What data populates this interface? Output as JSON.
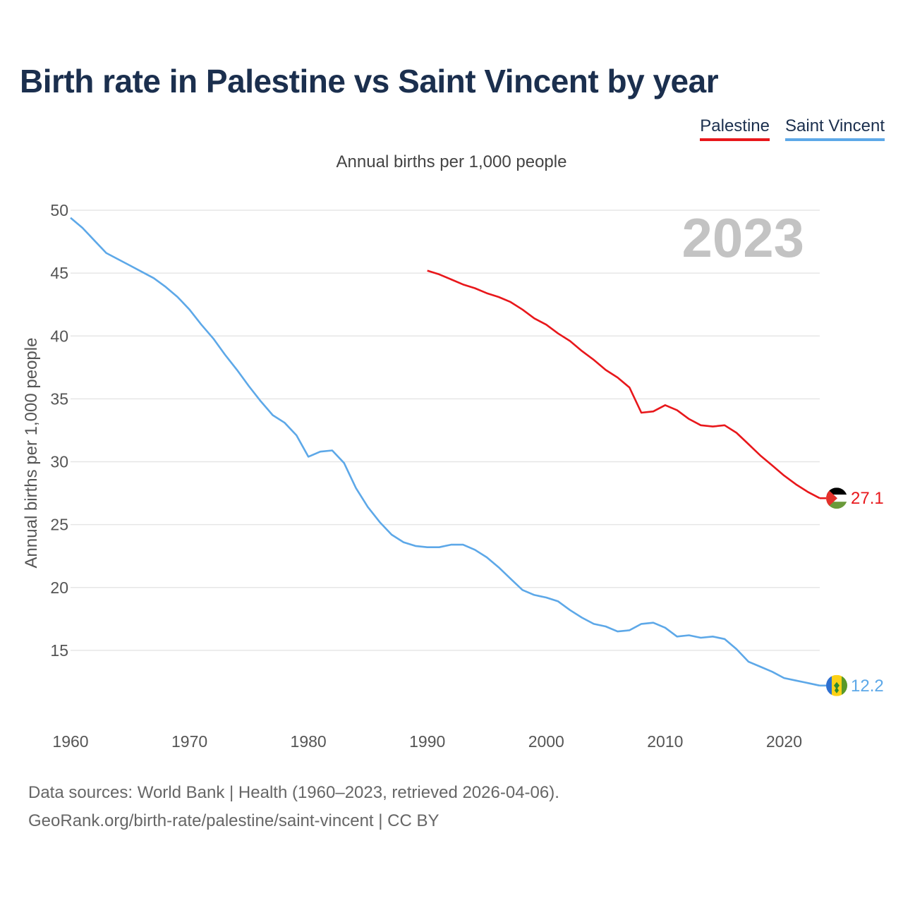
{
  "chart_data": {
    "type": "line",
    "title": "Birth rate in Palestine vs Saint Vincent by year",
    "subtitle": "Annual births per 1,000 people",
    "ylabel": "Annual births per 1,000 people",
    "xlabel": "",
    "current_year": "2023",
    "xlim": [
      1960,
      2023
    ],
    "ylim": [
      10,
      50
    ],
    "x_ticks": [
      1960,
      1970,
      1980,
      1990,
      2000,
      2010,
      2020
    ],
    "y_ticks": [
      15,
      20,
      25,
      30,
      35,
      40,
      45,
      50
    ],
    "legend_position": "top-right",
    "grid": true,
    "series": [
      {
        "name": "Palestine",
        "color": "#e8171b",
        "end_label": "27.1",
        "flag": "palestine-flag",
        "start_year": 1990,
        "values": [
          45.2,
          44.9,
          44.5,
          44.1,
          43.8,
          43.4,
          43.1,
          42.7,
          42.1,
          41.4,
          40.9,
          40.2,
          39.6,
          38.8,
          38.1,
          37.3,
          36.7,
          35.9,
          33.9,
          34.0,
          34.5,
          34.1,
          33.4,
          32.9,
          32.8,
          32.9,
          32.3,
          31.4,
          30.5,
          29.7,
          28.9,
          28.2,
          27.6,
          27.1
        ]
      },
      {
        "name": "Saint Vincent",
        "color": "#5da8e8",
        "end_label": "12.2",
        "flag": "saint-vincent-flag",
        "start_year": 1960,
        "values": [
          49.4,
          48.6,
          47.6,
          46.6,
          46.1,
          45.6,
          45.1,
          44.6,
          43.9,
          43.1,
          42.1,
          40.9,
          39.8,
          38.5,
          37.3,
          36.0,
          34.8,
          33.7,
          33.1,
          32.1,
          30.4,
          30.8,
          30.9,
          29.9,
          27.9,
          26.4,
          25.2,
          24.2,
          23.6,
          23.3,
          23.2,
          23.2,
          23.4,
          23.4,
          23.0,
          22.4,
          21.6,
          20.7,
          19.8,
          19.4,
          19.2,
          18.9,
          18.2,
          17.6,
          17.1,
          16.9,
          16.5,
          16.6,
          17.1,
          17.2,
          16.8,
          16.1,
          16.2,
          16.0,
          16.1,
          15.9,
          15.1,
          14.1,
          13.7,
          13.3,
          12.8,
          12.6,
          12.4,
          12.2
        ]
      }
    ]
  },
  "legend": [
    {
      "label": "Palestine",
      "color": "#e8171b"
    },
    {
      "label": "Saint Vincent",
      "color": "#5da8e8"
    }
  ],
  "source": {
    "line1": "Data sources: World Bank | Health (1960–2023, retrieved 2026-04-06).",
    "line2": "GeoRank.org/birth-rate/palestine/saint-vincent | CC BY"
  }
}
